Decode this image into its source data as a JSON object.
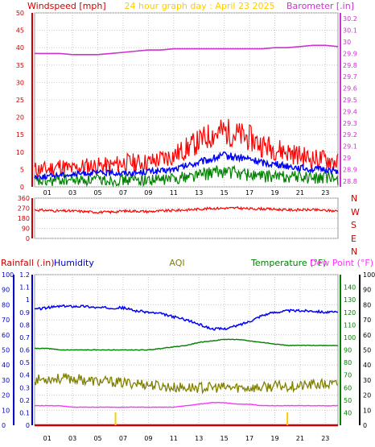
{
  "page_title": "24 hour graph day : April 23 2025",
  "colors": {
    "wind_speed": "#ff0000",
    "wind_avg": "#0000ff",
    "wind_gust": "#ff0000",
    "wind_low": "#008000",
    "barometer": "#cc33cc",
    "wind_dir": "#ff0000",
    "humidity": "#0000ff",
    "aqi": "#808000",
    "temperature": "#008000",
    "dew_point": "#ff33ff",
    "rainfall": "#cc0000",
    "rain_markers": "#ffcc00",
    "grid": "#c8c8c8"
  },
  "chart_data": [
    {
      "type": "line",
      "panel": "wind_barometer",
      "title": "24 hour graph day : April 23 2025",
      "ylabel_left": "Windspeed [mph]",
      "ylabel_right": "Barometer [.in]",
      "x_tick_labels": [
        "01",
        "03",
        "05",
        "07",
        "09",
        "11",
        "13",
        "15",
        "17",
        "19",
        "21",
        "23"
      ],
      "x": [
        0,
        1,
        2,
        3,
        4,
        5,
        6,
        7,
        8,
        9,
        10,
        11,
        12,
        13,
        14,
        15,
        16,
        17,
        18,
        19,
        20,
        21,
        22,
        23,
        24
      ],
      "y_left_ticks": [
        "0",
        "5",
        "10",
        "15",
        "20",
        "25",
        "30",
        "35",
        "40",
        "45",
        "50"
      ],
      "y_left_lim": [
        0,
        50
      ],
      "y_right_ticks": [
        "28.8",
        "28.9",
        "29",
        "29.1",
        "29.2",
        "29.3",
        "29.4",
        "29.5",
        "29.6",
        "29.7",
        "29.8",
        "29.9",
        "30",
        "30.1",
        "30.2"
      ],
      "y_right_lim": [
        28.75,
        30.25
      ],
      "grid": true,
      "series": [
        {
          "name": "gust",
          "axis": "left",
          "values": [
            5,
            5,
            6,
            5,
            6,
            6,
            6,
            7,
            7,
            7,
            8,
            9,
            11,
            13,
            15,
            16,
            15,
            14,
            12,
            11,
            10,
            9,
            8,
            8,
            7
          ]
        },
        {
          "name": "average",
          "axis": "left",
          "values": [
            3,
            3,
            3.5,
            3.5,
            4,
            4,
            4,
            4,
            4,
            4.5,
            4.5,
            5,
            6,
            7,
            8,
            9,
            8.5,
            8,
            7,
            6.5,
            6,
            5.5,
            5,
            5,
            4.5
          ]
        },
        {
          "name": "lull",
          "axis": "left",
          "values": [
            1.5,
            1.5,
            2,
            2,
            2,
            2,
            2,
            2,
            2,
            2,
            2,
            2.5,
            3,
            3.5,
            4,
            4.5,
            4,
            3.5,
            3,
            3,
            3,
            3,
            2.5,
            2.5,
            2
          ]
        },
        {
          "name": "barometer",
          "axis": "right",
          "values": [
            29.9,
            29.9,
            29.9,
            29.89,
            29.89,
            29.89,
            29.9,
            29.91,
            29.92,
            29.93,
            29.93,
            29.94,
            29.94,
            29.94,
            29.94,
            29.94,
            29.94,
            29.94,
            29.94,
            29.95,
            29.95,
            29.96,
            29.97,
            29.97,
            29.96
          ]
        }
      ]
    },
    {
      "type": "line",
      "panel": "wind_direction",
      "y_ticks": [
        "0",
        "90",
        "180",
        "270",
        "360"
      ],
      "y_lim": [
        0,
        360
      ],
      "y_right_labels": [
        "N",
        "W",
        "S",
        "E",
        "N"
      ],
      "x_tick_labels": [],
      "x": [
        0,
        1,
        2,
        3,
        4,
        5,
        6,
        7,
        8,
        9,
        10,
        11,
        12,
        13,
        14,
        15,
        16,
        17,
        18,
        19,
        20,
        21,
        22,
        23,
        24
      ],
      "grid": true,
      "series": [
        {
          "name": "direction",
          "values": [
            255,
            250,
            245,
            245,
            240,
            235,
            235,
            245,
            245,
            240,
            245,
            250,
            255,
            262,
            268,
            270,
            272,
            265,
            265,
            260,
            255,
            255,
            255,
            250,
            245
          ]
        }
      ]
    },
    {
      "type": "line",
      "panel": "rain_humidity_temp",
      "ylabel_left": "Rainfall (.in)",
      "ylabel_humidity": "Humidity",
      "ylabel_center": "AQI",
      "ylabel_right": "Temperature (°F)",
      "ylabel_right2": "Dew Point (°F)",
      "x_tick_labels": [
        "01",
        "03",
        "05",
        "07",
        "09",
        "11",
        "13",
        "15",
        "17",
        "19",
        "21",
        "23"
      ],
      "x": [
        0,
        1,
        2,
        3,
        4,
        5,
        6,
        7,
        8,
        9,
        10,
        11,
        12,
        13,
        14,
        15,
        16,
        17,
        18,
        19,
        20,
        21,
        22,
        23,
        24
      ],
      "y_rain_ticks": [
        "0",
        "0.1",
        "0.2",
        "0.3",
        "0.4",
        "0.5",
        "0.6",
        "0.7",
        "0.8",
        "0.9",
        "1",
        "1.1",
        "1.2"
      ],
      "y_rain_lim": [
        0,
        1.2
      ],
      "y_humidity_ticks": [
        "0",
        "10",
        "20",
        "30",
        "40",
        "50",
        "60",
        "70",
        "80",
        "90",
        "100"
      ],
      "y_humidity_lim": [
        0,
        100
      ],
      "y_temp_ticks": [
        "40",
        "50",
        "60",
        "70",
        "80",
        "90",
        "100",
        "110",
        "120",
        "130",
        "140"
      ],
      "y_temp_lim": [
        30,
        150
      ],
      "y_dew_ticks": [
        "0",
        "10",
        "20",
        "30",
        "40",
        "50",
        "60",
        "70",
        "80",
        "90",
        "100"
      ],
      "y_dew_lim": [
        0,
        100
      ],
      "grid": true,
      "series": [
        {
          "name": "humidity",
          "values": [
            77,
            78,
            79,
            79,
            79,
            78,
            78,
            78,
            76,
            75,
            74,
            72,
            70,
            67,
            64,
            64,
            66,
            69,
            73,
            75,
            76,
            76,
            76,
            75,
            75
          ]
        },
        {
          "name": "aqi",
          "values": [
            30,
            31,
            31,
            31,
            30,
            29,
            29,
            28,
            28,
            27,
            26,
            25,
            25,
            25,
            25,
            25,
            25,
            25,
            25,
            26,
            26,
            26,
            27,
            27,
            27
          ]
        },
        {
          "name": "temperature",
          "values": [
            51,
            51,
            50,
            50,
            50,
            50,
            50,
            50,
            50,
            50,
            51,
            52,
            53,
            55,
            56,
            57,
            57,
            56,
            55,
            54,
            53,
            53,
            53,
            53,
            53
          ]
        },
        {
          "name": "dew_point",
          "values": [
            13,
            13,
            13,
            12,
            12,
            12,
            12,
            12,
            12,
            12,
            12,
            12,
            13,
            14,
            15,
            15,
            14,
            14,
            13,
            13,
            13,
            13,
            13,
            13,
            13
          ]
        },
        {
          "name": "rainfall",
          "values": [
            0,
            0,
            0,
            0,
            0,
            0,
            0,
            0,
            0,
            0,
            0,
            0,
            0,
            0,
            0,
            0,
            0,
            0,
            0,
            0,
            0,
            0,
            0,
            0,
            0
          ]
        }
      ],
      "markers_x": [
        6.4,
        20.0
      ]
    }
  ]
}
